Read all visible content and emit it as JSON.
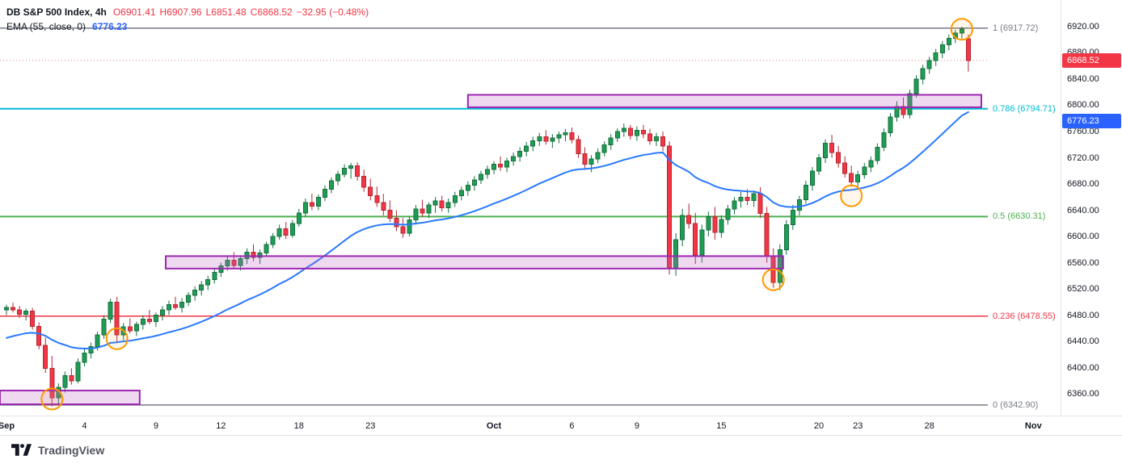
{
  "header": {
    "symbol": "DB S&P 500 Index, 4h",
    "ohlc": {
      "open": "O6901.41",
      "high": "H6907.96",
      "low": "L6851.48",
      "close": "C6868.52",
      "change": "−32.95 (−0.48%)"
    },
    "indicator": {
      "name": "EMA (55, close, 0)",
      "value": "6776.23"
    }
  },
  "watermark": {
    "brand": "TradingView"
  },
  "colors": {
    "up": "#1f9d55",
    "up_border": "#156f3c",
    "down": "#f23645",
    "down_border": "#b22833",
    "ema": "#2979ff",
    "zone_border": "#9c27b0",
    "zone_fill": "rgba(186,104,200,0.25)",
    "circle": "#ff9800",
    "axis_text": "#131722",
    "grid": "#e0e3eb"
  },
  "chart_data": {
    "type": "candlestick",
    "symbol": "DB S&P 500 Index",
    "timeframe": "4h",
    "last_price": 6868.52,
    "view": {
      "price_top": 6960.6,
      "price_bottom": 6326.8
    },
    "price_axis": {
      "min": 6360,
      "max": 6920,
      "step": 40,
      "labels": [
        "6920.00",
        "6880.00",
        "6840.00",
        "6800.00",
        "6760.00",
        "6720.00",
        "6680.00",
        "6640.00",
        "6600.00",
        "6560.00",
        "6520.00",
        "6480.00",
        "6440.00",
        "6400.00",
        "6360.00"
      ]
    },
    "time_labels": [
      {
        "label": "Sep",
        "index": 0,
        "major": true
      },
      {
        "label": "4",
        "index": 12
      },
      {
        "label": "9",
        "index": 23
      },
      {
        "label": "12",
        "index": 33
      },
      {
        "label": "18",
        "index": 45
      },
      {
        "label": "23",
        "index": 56
      },
      {
        "label": "Oct",
        "index": 75,
        "major": true
      },
      {
        "label": "6",
        "index": 87
      },
      {
        "label": "9",
        "index": 97
      },
      {
        "label": "15",
        "index": 110
      },
      {
        "label": "20",
        "index": 125
      },
      {
        "label": "23",
        "index": 131
      },
      {
        "label": "28",
        "index": 142
      },
      {
        "label": "Nov",
        "index": 158,
        "major": true
      }
    ],
    "fib_levels": [
      {
        "level": "1",
        "price": 6917.72,
        "label": "1 (6917.72)",
        "color": "#787b86",
        "width": 1.5
      },
      {
        "level": "0.786",
        "price": 6794.71,
        "label": "0.786 (6794.71)",
        "color": "#00bcd4",
        "width": 2
      },
      {
        "level": "0.5",
        "price": 6630.31,
        "label": "0.5 (6630.31)",
        "color": "#4caf50",
        "width": 2
      },
      {
        "level": "0.236",
        "price": 6478.55,
        "label": "0.236 (6478.55)",
        "color": "#f23645",
        "width": 1.5
      },
      {
        "level": "0",
        "price": 6342.9,
        "label": "0 (6342.90)",
        "color": "#787b86",
        "width": 1.5
      }
    ],
    "zones": [
      {
        "from_index": -1,
        "to_index": 20.5,
        "price_top": 6365,
        "price_bottom": 6344
      },
      {
        "from_index": 24.5,
        "to_index": 119.5,
        "price_top": 6570,
        "price_bottom": 6551
      },
      {
        "from_index": 71,
        "to_index": 150,
        "price_top": 6816,
        "price_bottom": 6797
      }
    ],
    "circles": [
      {
        "index": 7,
        "price": 6352
      },
      {
        "index": 17,
        "price": 6444
      },
      {
        "index": 118,
        "price": 6534
      },
      {
        "index": 130,
        "price": 6662
      },
      {
        "index": 147,
        "price": 6916
      }
    ],
    "ema": {
      "period": 55,
      "source": "close",
      "offset": 0,
      "color": "#2979ff",
      "start_value": 6442,
      "last_value": 6776.23
    },
    "price_labels": [
      {
        "value": "6868.52",
        "price": 6868.52,
        "color": "#f23645"
      },
      {
        "value": "6776.23",
        "price": 6776.23,
        "color": "#2962ff"
      }
    ],
    "candles_ohlc": [
      [
        6488,
        6496,
        6480,
        6492
      ],
      [
        6492,
        6499,
        6484,
        6488
      ],
      [
        6488,
        6494,
        6476,
        6481
      ],
      [
        6481,
        6490,
        6472,
        6486
      ],
      [
        6486,
        6491,
        6458,
        6463
      ],
      [
        6463,
        6469,
        6428,
        6434
      ],
      [
        6434,
        6446,
        6392,
        6399
      ],
      [
        6399,
        6418,
        6341,
        6354
      ],
      [
        6354,
        6376,
        6344,
        6370
      ],
      [
        6370,
        6394,
        6362,
        6388
      ],
      [
        6388,
        6399,
        6374,
        6380
      ],
      [
        6380,
        6414,
        6376,
        6408
      ],
      [
        6408,
        6428,
        6402,
        6422
      ],
      [
        6422,
        6438,
        6414,
        6432
      ],
      [
        6432,
        6455,
        6426,
        6450
      ],
      [
        6450,
        6480,
        6444,
        6474
      ],
      [
        6474,
        6505,
        6468,
        6500
      ],
      [
        6500,
        6508,
        6438,
        6450
      ],
      [
        6450,
        6468,
        6442,
        6462
      ],
      [
        6462,
        6475,
        6452,
        6456
      ],
      [
        6456,
        6470,
        6448,
        6466
      ],
      [
        6466,
        6480,
        6458,
        6474
      ],
      [
        6474,
        6488,
        6466,
        6470
      ],
      [
        6470,
        6484,
        6462,
        6480
      ],
      [
        6480,
        6494,
        6472,
        6488
      ],
      [
        6488,
        6502,
        6480,
        6496
      ],
      [
        6496,
        6508,
        6488,
        6492
      ],
      [
        6492,
        6506,
        6484,
        6500
      ],
      [
        6500,
        6515,
        6494,
        6510
      ],
      [
        6510,
        6524,
        6502,
        6518
      ],
      [
        6518,
        6532,
        6510,
        6526
      ],
      [
        6526,
        6540,
        6518,
        6534
      ],
      [
        6534,
        6550,
        6528,
        6545
      ],
      [
        6545,
        6560,
        6538,
        6555
      ],
      [
        6555,
        6570,
        6548,
        6564
      ],
      [
        6564,
        6576,
        6550,
        6556
      ],
      [
        6556,
        6570,
        6548,
        6566
      ],
      [
        6566,
        6582,
        6558,
        6576
      ],
      [
        6576,
        6588,
        6562,
        6568
      ],
      [
        6568,
        6580,
        6558,
        6575
      ],
      [
        6575,
        6592,
        6570,
        6588
      ],
      [
        6588,
        6605,
        6582,
        6600
      ],
      [
        6600,
        6618,
        6595,
        6612
      ],
      [
        6612,
        6622,
        6596,
        6602
      ],
      [
        6602,
        6625,
        6598,
        6620
      ],
      [
        6620,
        6642,
        6615,
        6636
      ],
      [
        6636,
        6658,
        6630,
        6652
      ],
      [
        6652,
        6665,
        6640,
        6646
      ],
      [
        6646,
        6664,
        6640,
        6660
      ],
      [
        6660,
        6678,
        6654,
        6672
      ],
      [
        6672,
        6690,
        6666,
        6685
      ],
      [
        6685,
        6700,
        6678,
        6695
      ],
      [
        6695,
        6710,
        6690,
        6704
      ],
      [
        6704,
        6712,
        6688,
        6708
      ],
      [
        6708,
        6713,
        6685,
        6692
      ],
      [
        6692,
        6702,
        6668,
        6675
      ],
      [
        6675,
        6688,
        6655,
        6662
      ],
      [
        6662,
        6676,
        6645,
        6652
      ],
      [
        6652,
        6665,
        6632,
        6640
      ],
      [
        6640,
        6655,
        6622,
        6628
      ],
      [
        6628,
        6640,
        6608,
        6615
      ],
      [
        6615,
        6628,
        6598,
        6605
      ],
      [
        6605,
        6630,
        6600,
        6625
      ],
      [
        6625,
        6648,
        6618,
        6642
      ],
      [
        6642,
        6656,
        6630,
        6636
      ],
      [
        6636,
        6652,
        6628,
        6648
      ],
      [
        6648,
        6660,
        6636,
        6654
      ],
      [
        6654,
        6662,
        6638,
        6644
      ],
      [
        6644,
        6658,
        6636,
        6652
      ],
      [
        6652,
        6668,
        6645,
        6662
      ],
      [
        6662,
        6676,
        6655,
        6670
      ],
      [
        6670,
        6684,
        6662,
        6678
      ],
      [
        6678,
        6692,
        6670,
        6686
      ],
      [
        6686,
        6700,
        6680,
        6695
      ],
      [
        6695,
        6708,
        6688,
        6702
      ],
      [
        6702,
        6715,
        6695,
        6710
      ],
      [
        6710,
        6722,
        6700,
        6706
      ],
      [
        6706,
        6720,
        6698,
        6715
      ],
      [
        6715,
        6728,
        6708,
        6722
      ],
      [
        6722,
        6736,
        6714,
        6730
      ],
      [
        6730,
        6744,
        6722,
        6738
      ],
      [
        6738,
        6752,
        6730,
        6746
      ],
      [
        6746,
        6758,
        6738,
        6752
      ],
      [
        6752,
        6762,
        6740,
        6745
      ],
      [
        6745,
        6756,
        6735,
        6750
      ],
      [
        6750,
        6760,
        6742,
        6755
      ],
      [
        6755,
        6764,
        6745,
        6758
      ],
      [
        6758,
        6766,
        6742,
        6748
      ],
      [
        6748,
        6754,
        6720,
        6726
      ],
      [
        6726,
        6736,
        6702,
        6710
      ],
      [
        6710,
        6724,
        6698,
        6718
      ],
      [
        6718,
        6734,
        6712,
        6728
      ],
      [
        6728,
        6745,
        6722,
        6740
      ],
      [
        6740,
        6756,
        6732,
        6750
      ],
      [
        6750,
        6765,
        6744,
        6760
      ],
      [
        6760,
        6772,
        6752,
        6765
      ],
      [
        6765,
        6770,
        6748,
        6754
      ],
      [
        6754,
        6768,
        6746,
        6762
      ],
      [
        6762,
        6770,
        6750,
        6756
      ],
      [
        6756,
        6764,
        6740,
        6746
      ],
      [
        6746,
        6758,
        6738,
        6752
      ],
      [
        6752,
        6760,
        6730,
        6738
      ],
      [
        6738,
        6745,
        6542,
        6552
      ],
      [
        6552,
        6605,
        6540,
        6595
      ],
      [
        6595,
        6642,
        6585,
        6632
      ],
      [
        6632,
        6650,
        6612,
        6620
      ],
      [
        6620,
        6636,
        6558,
        6572
      ],
      [
        6572,
        6618,
        6560,
        6610
      ],
      [
        6610,
        6638,
        6600,
        6630
      ],
      [
        6630,
        6645,
        6595,
        6606
      ],
      [
        6606,
        6632,
        6598,
        6626
      ],
      [
        6626,
        6648,
        6618,
        6642
      ],
      [
        6642,
        6660,
        6634,
        6654
      ],
      [
        6654,
        6668,
        6644,
        6660
      ],
      [
        6660,
        6672,
        6648,
        6655
      ],
      [
        6655,
        6670,
        6645,
        6665
      ],
      [
        6665,
        6675,
        6628,
        6635
      ],
      [
        6635,
        6645,
        6560,
        6570
      ],
      [
        6570,
        6582,
        6522,
        6530
      ],
      [
        6530,
        6588,
        6518,
        6580
      ],
      [
        6580,
        6625,
        6572,
        6618
      ],
      [
        6618,
        6648,
        6610,
        6640
      ],
      [
        6640,
        6662,
        6632,
        6656
      ],
      [
        6656,
        6685,
        6650,
        6678
      ],
      [
        6678,
        6706,
        6670,
        6700
      ],
      [
        6700,
        6726,
        6694,
        6720
      ],
      [
        6720,
        6748,
        6712,
        6742
      ],
      [
        6742,
        6755,
        6720,
        6728
      ],
      [
        6728,
        6738,
        6705,
        6712
      ],
      [
        6712,
        6722,
        6690,
        6696
      ],
      [
        6696,
        6708,
        6676,
        6683
      ],
      [
        6683,
        6700,
        6674,
        6694
      ],
      [
        6694,
        6712,
        6688,
        6706
      ],
      [
        6706,
        6722,
        6698,
        6716
      ],
      [
        6716,
        6742,
        6710,
        6736
      ],
      [
        6736,
        6765,
        6730,
        6758
      ],
      [
        6758,
        6788,
        6752,
        6782
      ],
      [
        6782,
        6806,
        6775,
        6798
      ],
      [
        6798,
        6812,
        6780,
        6786
      ],
      [
        6786,
        6824,
        6780,
        6818
      ],
      [
        6818,
        6846,
        6812,
        6840
      ],
      [
        6840,
        6862,
        6832,
        6856
      ],
      [
        6856,
        6874,
        6848,
        6868
      ],
      [
        6868,
        6886,
        6860,
        6880
      ],
      [
        6880,
        6898,
        6872,
        6892
      ],
      [
        6892,
        6908,
        6884,
        6902
      ],
      [
        6902,
        6915,
        6895,
        6910
      ],
      [
        6910,
        6920,
        6902,
        6916
      ],
      [
        6901.41,
        6907.96,
        6851.48,
        6868.52
      ]
    ]
  }
}
